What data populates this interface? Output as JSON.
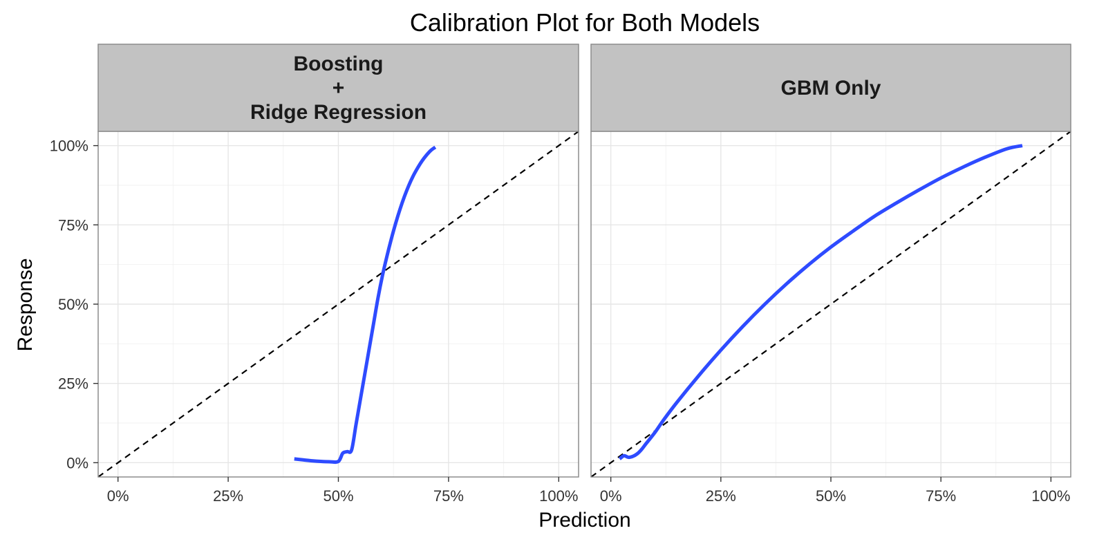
{
  "chart_data": {
    "type": "line",
    "title": "Calibration Plot for Both Models",
    "xlabel": "Prediction",
    "ylabel": "Response",
    "xlim": [
      0,
      100
    ],
    "ylim": [
      0,
      100
    ],
    "x_ticks": [
      0,
      25,
      50,
      75,
      100
    ],
    "y_ticks": [
      0,
      25,
      50,
      75,
      100
    ],
    "x_tick_labels": [
      "0%",
      "25%",
      "50%",
      "75%",
      "100%"
    ],
    "y_tick_labels": [
      "0%",
      "25%",
      "50%",
      "75%",
      "100%"
    ],
    "grid": true,
    "legend": "none",
    "colors": {
      "curve": "#2e4bff",
      "reference": "#000000",
      "strip": "#c2c2c2",
      "panel_border": "#8c8c8c"
    },
    "reference_line": {
      "x": [
        0,
        100
      ],
      "y": [
        0,
        100
      ],
      "style": "dashed"
    },
    "panels": [
      {
        "strip_lines": [
          "Boosting",
          "+",
          "Ridge Regression"
        ],
        "x": [
          40,
          42,
          44,
          46,
          48,
          50,
          51,
          52,
          53,
          54,
          55,
          56,
          57,
          58,
          59,
          60,
          61,
          62,
          63,
          64,
          65,
          66,
          67,
          68,
          69,
          70,
          71,
          72
        ],
        "y": [
          1.2,
          0.9,
          0.6,
          0.4,
          0.3,
          0.4,
          3.0,
          3.5,
          4.0,
          12,
          20,
          28,
          36,
          44,
          52,
          59,
          65,
          70.5,
          75.5,
          80,
          84,
          87.5,
          90.5,
          93,
          95.2,
          97,
          98.5,
          99.5
        ]
      },
      {
        "strip_lines": [
          "GBM Only"
        ],
        "x": [
          2,
          3,
          4,
          5,
          6,
          7,
          8,
          10,
          12,
          15,
          20,
          25,
          30,
          35,
          40,
          45,
          50,
          55,
          60,
          65,
          70,
          75,
          80,
          85,
          90,
          93.5
        ],
        "y": [
          1.2,
          2.2,
          1.7,
          2.0,
          2.8,
          4.2,
          6.0,
          9.5,
          13.5,
          19,
          27.5,
          35.5,
          43,
          50,
          56.5,
          62.5,
          68,
          73,
          77.8,
          82,
          86,
          89.8,
          93.2,
          96.3,
          99,
          100
        ]
      }
    ]
  }
}
